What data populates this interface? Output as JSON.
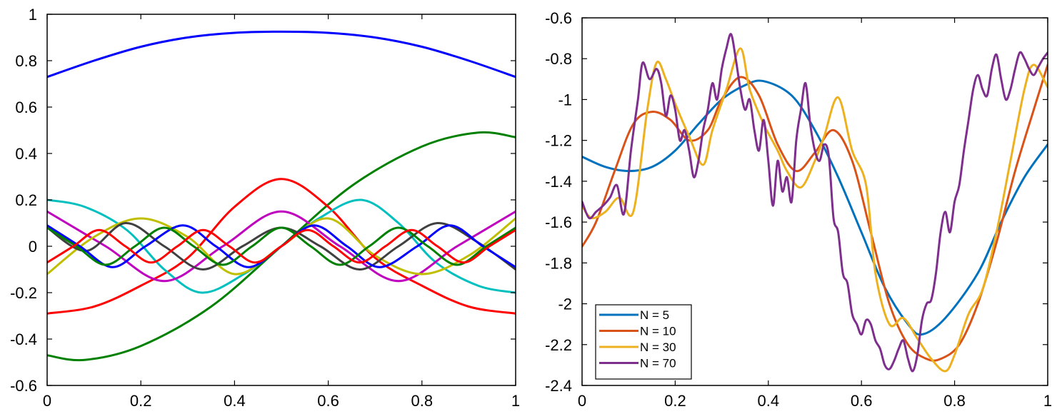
{
  "chart_data": [
    {
      "type": "line",
      "xlim": [
        0,
        1
      ],
      "ylim": [
        -0.6,
        1
      ],
      "x_ticks": [
        "0",
        "0.2",
        "0.4",
        "0.6",
        "0.8",
        "1"
      ],
      "y_ticks": [
        "-0.6",
        "-0.4",
        "-0.2",
        "0",
        "0.2",
        "0.4",
        "0.6",
        "0.8",
        "1"
      ],
      "grid": false,
      "legend": null,
      "series": [
        {
          "color": "#0000ff",
          "x": [
            0,
            0.1,
            0.2,
            0.3,
            0.4,
            0.5,
            0.6,
            0.7,
            0.8,
            0.9,
            1
          ],
          "y": [
            0.73,
            0.8,
            0.86,
            0.9,
            0.92,
            0.925,
            0.92,
            0.9,
            0.86,
            0.8,
            0.73
          ]
        },
        {
          "color": "#008000",
          "x": [
            0,
            0.08,
            0.2,
            0.35,
            0.5,
            0.65,
            0.8,
            0.92,
            1
          ],
          "y": [
            -0.47,
            -0.49,
            -0.43,
            -0.26,
            0.0,
            0.26,
            0.43,
            0.49,
            0.47
          ]
        },
        {
          "color": "#ff0000",
          "x": [
            0,
            0.1,
            0.2,
            0.3,
            0.4,
            0.5,
            0.6,
            0.7,
            0.8,
            0.9,
            1
          ],
          "y": [
            -0.29,
            -0.26,
            -0.17,
            -0.05,
            0.17,
            0.29,
            0.17,
            -0.05,
            -0.17,
            -0.26,
            -0.29
          ]
        },
        {
          "color": "#00bfbf",
          "x": [
            0,
            0.08,
            0.17,
            0.25,
            0.33,
            0.42,
            0.5,
            0.58,
            0.67,
            0.75,
            0.83,
            0.92,
            1
          ],
          "y": [
            0.2,
            0.17,
            0.07,
            -0.1,
            -0.2,
            -0.12,
            0.0,
            0.12,
            0.2,
            0.1,
            -0.07,
            -0.17,
            -0.2
          ]
        },
        {
          "color": "#bf00bf",
          "x": [
            0,
            0.125,
            0.25,
            0.375,
            0.5,
            0.625,
            0.75,
            0.875,
            1
          ],
          "y": [
            0.15,
            0.0,
            -0.15,
            0.0,
            0.15,
            0.0,
            -0.15,
            0.0,
            0.15
          ]
        },
        {
          "color": "#bfbf00",
          "x": [
            0,
            0.1,
            0.2,
            0.3,
            0.4,
            0.5,
            0.6,
            0.7,
            0.8,
            0.9,
            1
          ],
          "y": [
            -0.12,
            0.04,
            0.12,
            0.04,
            -0.12,
            0.0,
            0.12,
            -0.04,
            -0.12,
            -0.04,
            0.12
          ]
        },
        {
          "color": "#404040",
          "x": [
            0,
            0.083,
            0.167,
            0.25,
            0.333,
            0.417,
            0.5,
            0.583,
            0.667,
            0.75,
            0.833,
            0.917,
            1
          ],
          "y": [
            0.08,
            -0.02,
            0.1,
            0.0,
            -0.1,
            0.0,
            0.08,
            0.0,
            -0.1,
            0.0,
            0.1,
            0.02,
            -0.1
          ]
        },
        {
          "color": "#0000ff",
          "x": [
            0,
            0.07,
            0.14,
            0.21,
            0.29,
            0.36,
            0.43,
            0.5,
            0.57,
            0.64,
            0.71,
            0.79,
            0.86,
            0.93,
            1
          ],
          "y": [
            0.09,
            0.0,
            -0.09,
            0.0,
            0.09,
            0.0,
            -0.09,
            0.0,
            0.09,
            0.0,
            -0.09,
            0.0,
            0.09,
            0.0,
            -0.09
          ]
        },
        {
          "color": "#008000",
          "x": [
            0,
            0.0625,
            0.125,
            0.1875,
            0.25,
            0.3125,
            0.375,
            0.4375,
            0.5,
            0.5625,
            0.625,
            0.6875,
            0.75,
            0.8125,
            0.875,
            0.9375,
            1
          ],
          "y": [
            0.08,
            0.0,
            -0.08,
            0.0,
            0.08,
            0.0,
            -0.08,
            0.0,
            0.08,
            0.0,
            -0.08,
            0.0,
            0.08,
            0.0,
            -0.08,
            0.0,
            0.08
          ]
        },
        {
          "color": "#ff0000",
          "x": [
            0,
            0.056,
            0.111,
            0.167,
            0.222,
            0.278,
            0.333,
            0.389,
            0.444,
            0.5,
            0.556,
            0.611,
            0.667,
            0.722,
            0.778,
            0.833,
            0.889,
            0.944,
            1
          ],
          "y": [
            -0.07,
            0.0,
            0.07,
            0.0,
            -0.07,
            0.0,
            0.07,
            0.0,
            -0.07,
            0.0,
            0.07,
            0.0,
            -0.07,
            0.0,
            0.07,
            0.0,
            -0.07,
            0.0,
            0.07
          ]
        }
      ]
    },
    {
      "type": "line",
      "xlim": [
        0,
        1
      ],
      "ylim": [
        -2.4,
        -0.6
      ],
      "x_ticks": [
        "0",
        "0.2",
        "0.4",
        "0.6",
        "0.8",
        "1"
      ],
      "y_ticks": [
        "-2.4",
        "-2.2",
        "-2",
        "-1.8",
        "-1.6",
        "-1.4",
        "-1.2",
        "-1",
        "-0.8",
        "-0.6"
      ],
      "grid": false,
      "legend": "bottom-left",
      "series": [
        {
          "name": "N = 5",
          "color": "#0072bd",
          "x": [
            0,
            0.05,
            0.1,
            0.15,
            0.2,
            0.25,
            0.3,
            0.35,
            0.39,
            0.45,
            0.5,
            0.55,
            0.6,
            0.65,
            0.7,
            0.73,
            0.78,
            0.85,
            0.9,
            0.95,
            1
          ],
          "y": [
            -1.28,
            -1.33,
            -1.35,
            -1.33,
            -1.25,
            -1.12,
            -1.0,
            -0.93,
            -0.91,
            -0.98,
            -1.15,
            -1.38,
            -1.65,
            -1.92,
            -2.1,
            -2.15,
            -2.07,
            -1.85,
            -1.6,
            -1.38,
            -1.22
          ]
        },
        {
          "name": "N = 10",
          "color": "#d95319",
          "x": [
            0,
            0.03,
            0.07,
            0.11,
            0.15,
            0.19,
            0.23,
            0.27,
            0.3,
            0.34,
            0.38,
            0.42,
            0.46,
            0.5,
            0.54,
            0.58,
            0.62,
            0.66,
            0.7,
            0.74,
            0.77,
            0.81,
            0.85,
            0.89,
            0.93,
            0.97,
            1
          ],
          "y": [
            -1.72,
            -1.6,
            -1.35,
            -1.12,
            -1.06,
            -1.1,
            -1.2,
            -1.15,
            -1.0,
            -0.89,
            -0.98,
            -1.22,
            -1.35,
            -1.26,
            -1.15,
            -1.3,
            -1.65,
            -2.0,
            -2.2,
            -2.27,
            -2.27,
            -2.2,
            -2.0,
            -1.7,
            -1.35,
            -1.05,
            -0.83
          ]
        },
        {
          "name": "N = 30",
          "color": "#edb120",
          "x": [
            0,
            0.02,
            0.05,
            0.08,
            0.11,
            0.14,
            0.16,
            0.18,
            0.2,
            0.23,
            0.26,
            0.28,
            0.31,
            0.34,
            0.36,
            0.39,
            0.42,
            0.44,
            0.47,
            0.5,
            0.52,
            0.55,
            0.58,
            0.61,
            0.63,
            0.66,
            0.69,
            0.72,
            0.75,
            0.78,
            0.8,
            0.83,
            0.86,
            0.89,
            0.92,
            0.95,
            0.97,
            1
          ],
          "y": [
            -1.52,
            -1.58,
            -1.55,
            -1.48,
            -1.55,
            -1.05,
            -0.82,
            -0.9,
            -1.02,
            -1.18,
            -1.32,
            -1.15,
            -0.95,
            -0.75,
            -0.95,
            -1.12,
            -1.25,
            -1.35,
            -1.43,
            -1.3,
            -1.18,
            -0.99,
            -1.25,
            -1.42,
            -1.85,
            -2.1,
            -2.07,
            -2.17,
            -2.27,
            -2.33,
            -2.25,
            -2.05,
            -1.93,
            -1.65,
            -1.3,
            -0.95,
            -0.83,
            -0.94
          ]
        },
        {
          "name": "N = 70",
          "color": "#7e2f8e",
          "x": [
            0,
            0.015,
            0.03,
            0.045,
            0.06,
            0.075,
            0.09,
            0.105,
            0.12,
            0.13,
            0.145,
            0.16,
            0.17,
            0.18,
            0.19,
            0.2,
            0.21,
            0.22,
            0.23,
            0.24,
            0.25,
            0.26,
            0.27,
            0.28,
            0.29,
            0.3,
            0.31,
            0.32,
            0.33,
            0.34,
            0.35,
            0.36,
            0.37,
            0.38,
            0.39,
            0.4,
            0.41,
            0.42,
            0.43,
            0.44,
            0.45,
            0.46,
            0.47,
            0.48,
            0.49,
            0.5,
            0.51,
            0.52,
            0.53,
            0.54,
            0.55,
            0.56,
            0.57,
            0.58,
            0.59,
            0.6,
            0.61,
            0.62,
            0.63,
            0.64,
            0.65,
            0.66,
            0.67,
            0.68,
            0.69,
            0.7,
            0.71,
            0.72,
            0.73,
            0.74,
            0.75,
            0.76,
            0.77,
            0.78,
            0.79,
            0.8,
            0.81,
            0.82,
            0.83,
            0.84,
            0.85,
            0.86,
            0.87,
            0.88,
            0.89,
            0.9,
            0.91,
            0.92,
            0.93,
            0.94,
            0.95,
            0.96,
            0.97,
            0.98,
            0.99,
            1
          ],
          "y": [
            -1.5,
            -1.58,
            -1.55,
            -1.52,
            -1.48,
            -1.42,
            -1.56,
            -1.25,
            -1.0,
            -0.82,
            -0.9,
            -0.85,
            -0.92,
            -1.08,
            -0.98,
            -1.05,
            -1.2,
            -1.15,
            -1.25,
            -1.38,
            -1.3,
            -1.15,
            -1.05,
            -0.92,
            -1.0,
            -0.85,
            -0.75,
            -0.68,
            -0.8,
            -0.95,
            -1.05,
            -1.0,
            -1.15,
            -1.25,
            -1.1,
            -1.3,
            -1.52,
            -1.3,
            -1.45,
            -1.38,
            -1.5,
            -1.2,
            -1.05,
            -0.92,
            -1.12,
            -1.25,
            -1.3,
            -1.22,
            -1.28,
            -1.58,
            -1.65,
            -1.85,
            -1.9,
            -2.05,
            -2.1,
            -2.15,
            -2.08,
            -2.1,
            -2.18,
            -2.22,
            -2.3,
            -2.32,
            -2.28,
            -2.22,
            -2.18,
            -2.27,
            -2.33,
            -2.25,
            -2.08,
            -2.0,
            -1.98,
            -1.85,
            -1.65,
            -1.55,
            -1.65,
            -1.5,
            -1.42,
            -1.25,
            -1.1,
            -0.95,
            -0.88,
            -0.95,
            -0.98,
            -0.85,
            -0.78,
            -0.9,
            -1.0,
            -0.95,
            -0.85,
            -0.77,
            -0.8,
            -0.85,
            -0.88,
            -0.84,
            -0.8,
            -0.77
          ]
        }
      ]
    }
  ]
}
